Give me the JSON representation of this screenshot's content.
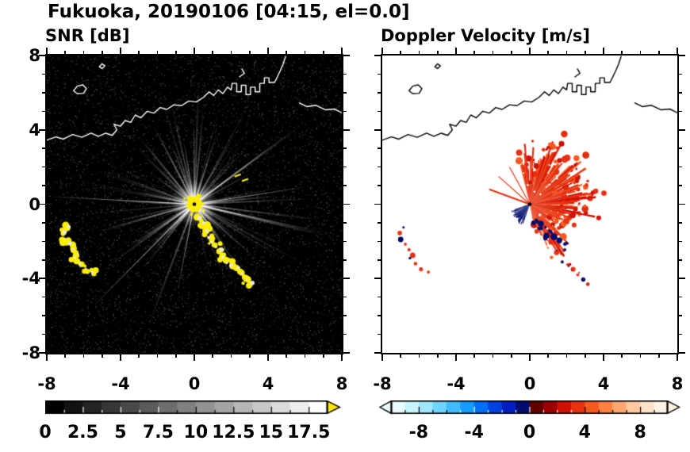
{
  "title": "Fukuoka, 20190106 [04:15, el=0.0]",
  "panels": {
    "snr": {
      "title": "SNR [dB]",
      "xtick_labels": [
        "-8",
        "-4",
        "0",
        "4",
        "8"
      ],
      "ytick_labels": [
        "8",
        "4",
        "0",
        "-4",
        "-8"
      ],
      "colorbar_labels": [
        "0",
        "2.5",
        "5",
        "7.5",
        "10",
        "12.5",
        "15",
        "17.5"
      ]
    },
    "doppler": {
      "title": "Doppler Velocity [m/s]",
      "xtick_labels": [
        "-8",
        "-4",
        "0",
        "4",
        "8"
      ],
      "colorbar_labels": [
        "-8",
        "-4",
        "0",
        "4",
        "8"
      ]
    }
  },
  "chart_data": {
    "type": "heatmap",
    "figure_kind": "radar_ppi_pair",
    "station": "Fukuoka",
    "date": "20190106",
    "time": "04:15",
    "elevation_deg": 0.0,
    "axes": {
      "xlim": [
        -8,
        8
      ],
      "ylim": [
        -8,
        8
      ],
      "xticks": [
        -8,
        -4,
        0,
        4,
        8
      ],
      "yticks": [
        -8,
        -4,
        0,
        4,
        8
      ],
      "minor_tick_every": 1
    },
    "radar_center": [
      0,
      0
    ],
    "panels": [
      {
        "id": "snr",
        "title": "SNR [dB]",
        "units": "dB",
        "background": "#000000",
        "colorbar": {
          "min": 0,
          "max": 18.75,
          "block_step": 1.25,
          "tick_values": [
            0,
            2.5,
            5,
            7.5,
            10,
            12.5,
            15,
            17.5
          ],
          "palette": "grayscale",
          "over_arrow_color": "#ffe600"
        },
        "features": {
          "noise_seed": 11,
          "speckle_count": 5200,
          "streaks": {
            "count": 95,
            "min_len": 1.2,
            "max_len": 7.3,
            "gap_deg": [
              238,
              286
            ],
            "gap_skip": 0.65
          },
          "long_rays": [
            [
              -7.6,
              0.4
            ],
            [
              -5.4,
              -5.4
            ],
            [
              -0.9,
              -4.6
            ],
            [
              3.9,
              2.9
            ],
            [
              5.9,
              0.9
            ]
          ],
          "glow_radius": 1.25,
          "center_blob": {
            "color": "#ffee00",
            "radius": 0.42
          },
          "center_dot": {
            "color": "#000000",
            "radius": 0.1
          },
          "saturated_color": "#ffee00",
          "echo_core_color": "#e8e8e8",
          "se_chain": [
            [
              0.3,
              -0.75
            ],
            [
              0.5,
              -1.05
            ],
            [
              0.65,
              -1.4
            ],
            [
              0.75,
              -1.75
            ],
            [
              0.95,
              -2.05
            ],
            [
              1.2,
              -2.25
            ],
            [
              1.45,
              -2.5
            ],
            [
              1.55,
              -2.85
            ],
            [
              1.75,
              -3.1
            ],
            [
              2.05,
              -3.25
            ],
            [
              2.35,
              -3.45
            ],
            [
              2.55,
              -3.75
            ],
            [
              2.85,
              -4.05
            ],
            [
              3.15,
              -4.25
            ]
          ],
          "west_chain_1": [
            [
              -6.85,
              -1.25
            ],
            [
              -7.05,
              -1.55
            ],
            [
              -7.0,
              -1.9
            ],
            [
              -6.75,
              -2.15
            ],
            [
              -6.55,
              -2.45
            ],
            [
              -6.35,
              -2.75
            ]
          ],
          "west_chain_2": [
            [
              -6.5,
              -2.9
            ],
            [
              -6.2,
              -3.2
            ],
            [
              -5.9,
              -3.5
            ],
            [
              -5.5,
              -3.65
            ]
          ],
          "yellow_dashes": [
            [
              2.35,
              1.55
            ],
            [
              2.75,
              1.3
            ]
          ]
        }
      },
      {
        "id": "doppler",
        "title": "Doppler Velocity [m/s]",
        "units": "m/s",
        "background": "#ffffff",
        "colorbar": {
          "min": -10,
          "max": 10,
          "block_step": 1,
          "tick_values": [
            -8,
            -4,
            0,
            4,
            8
          ],
          "palette_colors": [
            "#eafdff",
            "#c8f4ff",
            "#9fe7ff",
            "#6fd5ff",
            "#3fbcff",
            "#149cff",
            "#0070f8",
            "#0042e0",
            "#001fc0",
            "#000c6e",
            "#600000",
            "#9c0000",
            "#cf1002",
            "#e93112",
            "#f75a1f",
            "#ff8142",
            "#ffa671",
            "#ffc89e",
            "#ffe3c8",
            "#fff4e4"
          ],
          "under_arrow_color": "#eaffff",
          "over_arrow_color": "#fff6df"
        },
        "features": {
          "noise_seed": 23,
          "away_color": "#e93112",
          "toward_color": "#000c6e",
          "red_fan": {
            "angle_start": -78,
            "angle_end": 104,
            "min_r": 0.9,
            "max_r": 3.6,
            "colors": [
              "#e93112",
              "#cf1002",
              "#f75a1f",
              "#e32a0c"
            ]
          },
          "nw_streaks": [
            [
              -2.2,
              0.8
            ],
            [
              -1.7,
              1.5
            ],
            [
              -1.1,
              2.0
            ]
          ],
          "navy_wedge": {
            "angle_start": 198,
            "angle_end": 250,
            "max_r": 1.55
          },
          "navy_cluster": [
            [
              0.35,
              -0.85
            ],
            [
              0.6,
              -1.05
            ],
            [
              0.85,
              -1.25
            ],
            [
              1.1,
              -1.45
            ],
            [
              0.5,
              -1.3
            ],
            [
              0.9,
              -1.7
            ],
            [
              1.3,
              -1.75
            ],
            [
              1.6,
              -1.95
            ],
            [
              0.2,
              -1.0
            ],
            [
              2.0,
              -2.1
            ],
            [
              1.9,
              -2.45
            ]
          ],
          "se_chain": [
            [
              1.45,
              -2.6
            ],
            [
              1.75,
              -3.1
            ],
            [
              2.05,
              -3.25
            ],
            [
              2.35,
              -3.5
            ],
            [
              2.6,
              -3.8
            ],
            [
              2.9,
              -4.05
            ],
            [
              3.15,
              -4.3
            ]
          ],
          "west_chain_1": [
            [
              -6.85,
              -1.25
            ],
            [
              -7.05,
              -1.55
            ],
            [
              -7.0,
              -1.9
            ],
            [
              -6.75,
              -2.15
            ],
            [
              -6.55,
              -2.45
            ],
            [
              -6.35,
              -2.75
            ]
          ],
          "west_chain_2": [
            [
              -6.5,
              -2.9
            ],
            [
              -6.2,
              -3.2
            ],
            [
              -5.9,
              -3.5
            ],
            [
              -5.5,
              -3.65
            ]
          ],
          "center_dot": {
            "color": "#000000",
            "radius": 0.1
          }
        }
      }
    ],
    "coastline": {
      "color_on_dark": "#ffffff",
      "color_on_light": "#000000",
      "main": [
        [
          -8,
          3.45
        ],
        [
          -7.5,
          3.62
        ],
        [
          -7.1,
          3.5
        ],
        [
          -6.6,
          3.75
        ],
        [
          -6.1,
          3.6
        ],
        [
          -5.6,
          3.82
        ],
        [
          -5.2,
          3.65
        ],
        [
          -4.8,
          3.82
        ],
        [
          -4.45,
          3.7
        ],
        [
          -4.2,
          4.0
        ],
        [
          -4.35,
          4.3
        ],
        [
          -4.0,
          4.2
        ],
        [
          -3.75,
          4.5
        ],
        [
          -3.45,
          4.4
        ],
        [
          -3.2,
          4.8
        ],
        [
          -2.9,
          4.65
        ],
        [
          -2.55,
          5.0
        ],
        [
          -2.2,
          4.9
        ],
        [
          -1.85,
          5.2
        ],
        [
          -1.5,
          5.1
        ],
        [
          -1.1,
          5.35
        ],
        [
          -0.7,
          5.3
        ],
        [
          -0.3,
          5.55
        ],
        [
          0.1,
          5.5
        ],
        [
          0.5,
          5.75
        ],
        [
          0.8,
          6.05
        ],
        [
          1.05,
          5.85
        ],
        [
          1.3,
          6.15
        ],
        [
          1.55,
          5.95
        ],
        [
          1.8,
          6.3
        ],
        [
          2.0,
          6.15
        ],
        [
          2.05,
          6.5
        ],
        [
          2.3,
          6.5
        ],
        [
          2.3,
          6.05
        ],
        [
          2.55,
          6.05
        ],
        [
          2.55,
          6.4
        ],
        [
          2.8,
          6.4
        ],
        [
          2.8,
          5.9
        ],
        [
          3.05,
          5.9
        ],
        [
          3.05,
          6.3
        ],
        [
          3.3,
          6.3
        ],
        [
          3.3,
          6.05
        ],
        [
          3.55,
          6.05
        ],
        [
          3.55,
          6.5
        ],
        [
          3.8,
          6.5
        ],
        [
          3.8,
          6.8
        ],
        [
          4.05,
          6.8
        ],
        [
          4.05,
          6.55
        ],
        [
          4.35,
          6.55
        ],
        [
          4.5,
          6.85
        ],
        [
          4.67,
          7.2
        ],
        [
          4.82,
          7.55
        ],
        [
          4.95,
          7.95
        ]
      ],
      "islands": [
        [
          [
            -6.55,
            6.1
          ],
          [
            -6.35,
            6.35
          ],
          [
            -6.05,
            6.42
          ],
          [
            -5.85,
            6.22
          ],
          [
            -6.0,
            5.97
          ],
          [
            -6.35,
            5.95
          ]
        ],
        [
          [
            -5.15,
            7.4
          ],
          [
            -5.0,
            7.55
          ],
          [
            -4.85,
            7.45
          ],
          [
            -5.0,
            7.3
          ]
        ]
      ],
      "right_segment": [
        [
          5.7,
          5.45
        ],
        [
          6.1,
          5.25
        ],
        [
          6.6,
          5.32
        ],
        [
          7.1,
          5.08
        ],
        [
          7.6,
          5.12
        ],
        [
          8,
          4.92
        ]
      ],
      "breakwater": [
        [
          2.45,
          6.85
        ],
        [
          2.72,
          7.05
        ],
        [
          2.58,
          7.28
        ]
      ]
    }
  }
}
